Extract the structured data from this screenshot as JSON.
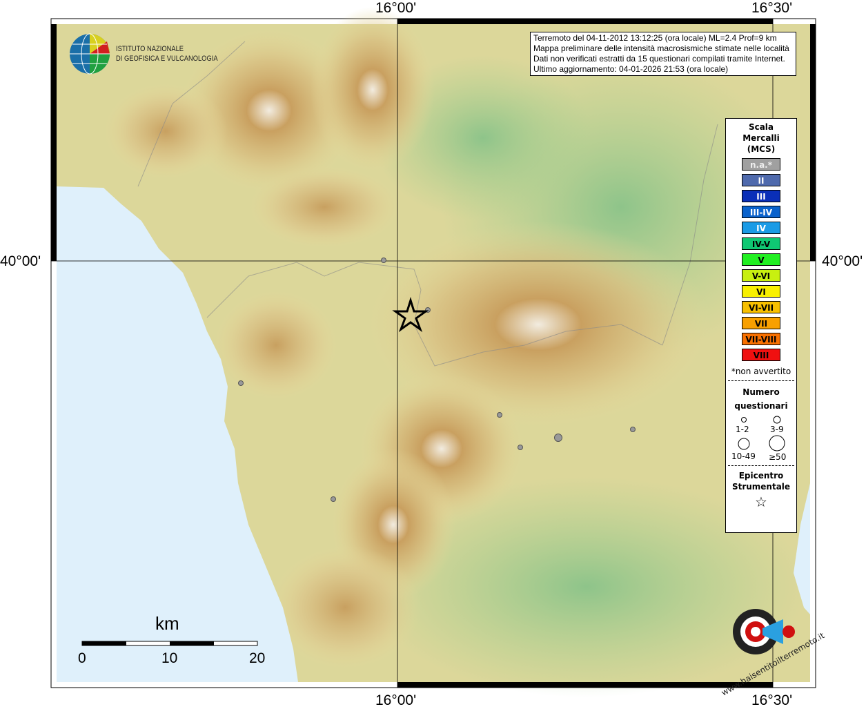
{
  "grid_labels": {
    "top": [
      "16°00'",
      "16°30'"
    ],
    "bottom": [
      "16°00'",
      "16°30'"
    ],
    "left": "40°00'",
    "right": "40°00'"
  },
  "info_box": [
    "Terremoto del 04-11-2012 13:12:25 (ora locale) ML=2.4 Prof=9 km",
    "Mappa preliminare delle intensità macrosismiche stimate nelle località",
    "Dati non verificati estratti da 15 questionari compilati tramite Internet.",
    "Ultimo aggiornamento: 04-01-2026 21:53 (ora locale)"
  ],
  "institute": {
    "line1": "ISTITUTO NAZIONALE",
    "line2": "DI GEOFISICA E VULCANOLOGIA"
  },
  "legend": {
    "title": [
      "Scala",
      "Mercalli",
      "(MCS)"
    ],
    "classes": [
      {
        "label": "n.a.*",
        "color": "#a0a0a0",
        "text": "#eeeeee"
      },
      {
        "label": "II",
        "color": "#4f6aad",
        "text": "#ffffff"
      },
      {
        "label": "III",
        "color": "#0a2fb8",
        "text": "#ffffff"
      },
      {
        "label": "III-IV",
        "color": "#0a62cc",
        "text": "#ffffff"
      },
      {
        "label": "IV",
        "color": "#1a9be6",
        "text": "#ffffff"
      },
      {
        "label": "IV-V",
        "color": "#0fc873",
        "text": "#000000"
      },
      {
        "label": "V",
        "color": "#22f022",
        "text": "#000000"
      },
      {
        "label": "V-VI",
        "color": "#c8f010",
        "text": "#000000"
      },
      {
        "label": "VI",
        "color": "#f8f000",
        "text": "#000000"
      },
      {
        "label": "VI-VII",
        "color": "#f8c000",
        "text": "#000000"
      },
      {
        "label": "VII",
        "color": "#f8a000",
        "text": "#000000"
      },
      {
        "label": "VII-VIII",
        "color": "#f87000",
        "text": "#000000"
      },
      {
        "label": "VIII",
        "color": "#f01010",
        "text": "#000000"
      }
    ],
    "not_felt_note": "*non avvertito",
    "questionnaires_title": [
      "Numero",
      "questionari"
    ],
    "size_classes": [
      "1-2",
      "3-9",
      "10-49",
      "≥50"
    ],
    "epicenter_title": [
      "Epicentro",
      "Strumentale"
    ]
  },
  "scale_bar": {
    "unit": "km",
    "ticks": [
      "0",
      "10",
      "20"
    ]
  },
  "brand": "www.haisentitoilterremoto.it",
  "observations": [
    {
      "intensity": "n.a.",
      "count": "1-2"
    },
    {
      "intensity": "n.a.",
      "count": "1-2"
    },
    {
      "intensity": "n.a.",
      "count": "1-2"
    },
    {
      "intensity": "n.a.",
      "count": "1-2"
    },
    {
      "intensity": "n.a.",
      "count": "3-9"
    },
    {
      "intensity": "n.a.",
      "count": "1-2"
    },
    {
      "intensity": "n.a.",
      "count": "1-2"
    },
    {
      "intensity": "n.a.",
      "count": "1-2"
    }
  ]
}
